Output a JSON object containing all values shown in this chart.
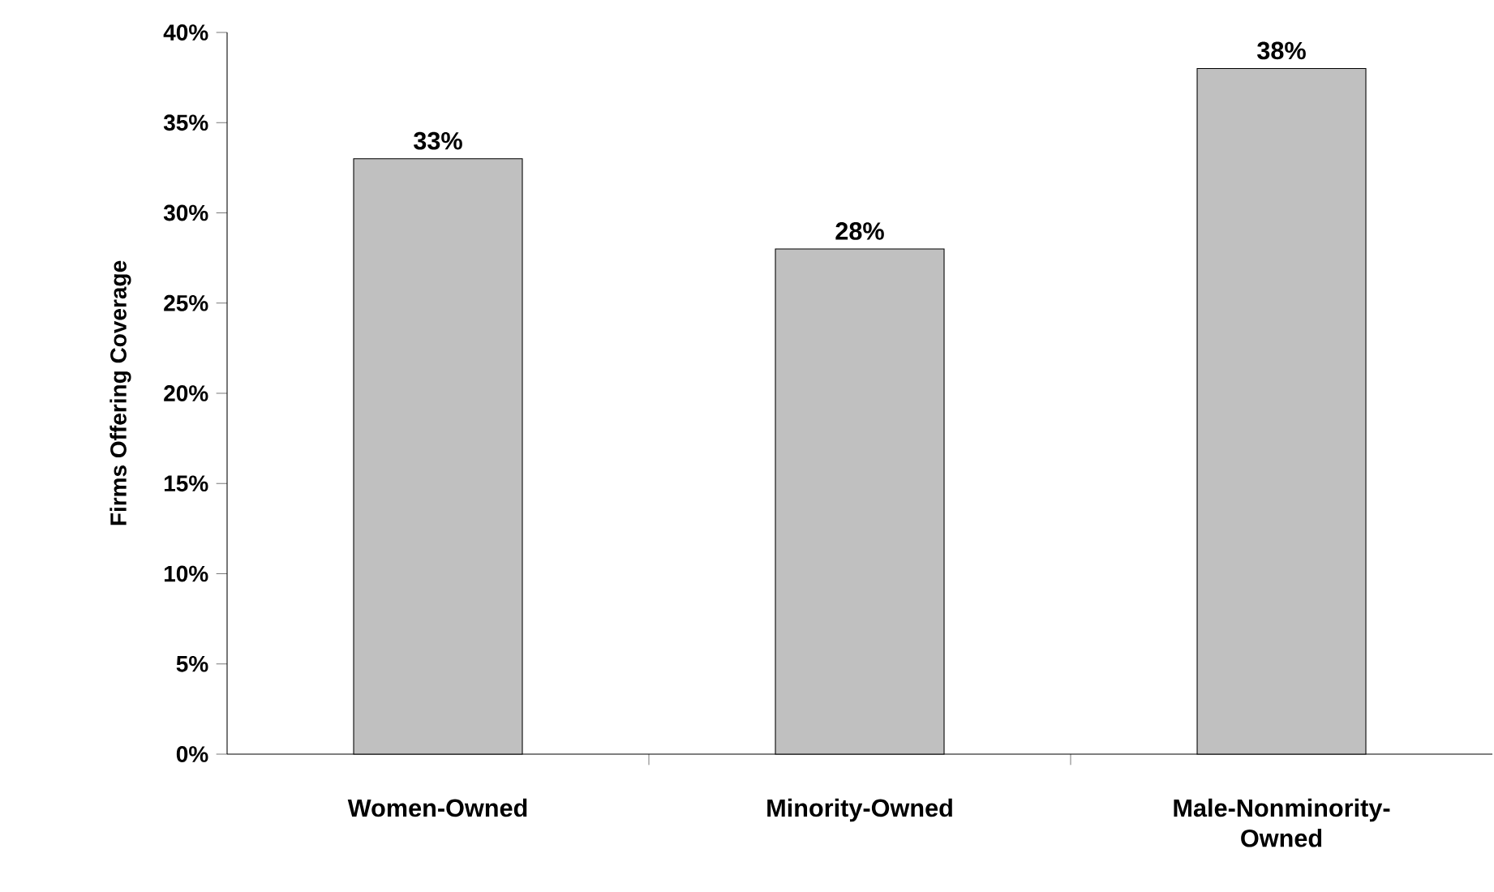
{
  "chart_data": {
    "type": "bar",
    "ylabel": "Firms Offering Coverage",
    "categories": [
      "Women-Owned",
      "Minority-Owned",
      "Male-Nonminority-Owned"
    ],
    "values": [
      33,
      28,
      38
    ],
    "value_labels": [
      "33%",
      "28%",
      "38%"
    ],
    "color": "#c0c0c0",
    "ylim": [
      0,
      40
    ],
    "yticks": [
      {
        "value": 0,
        "label": "0%"
      },
      {
        "value": 5,
        "label": "5%"
      },
      {
        "value": 10,
        "label": "10%"
      },
      {
        "value": 15,
        "label": "15%"
      },
      {
        "value": 20,
        "label": "20%"
      },
      {
        "value": 25,
        "label": "25%"
      },
      {
        "value": 30,
        "label": "30%"
      },
      {
        "value": 35,
        "label": "35%"
      },
      {
        "value": 40,
        "label": "40%"
      }
    ],
    "grid": false
  }
}
